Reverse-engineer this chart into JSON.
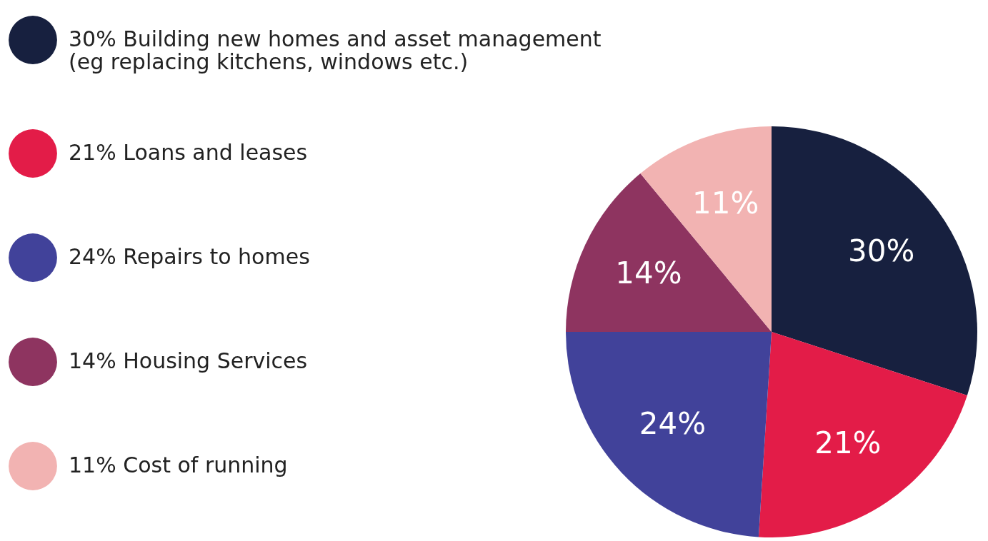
{
  "chart_data": {
    "type": "pie",
    "categories": [
      "30% Building new homes and asset management\n(eg replacing kitchens, windows etc.)",
      "21% Loans and leases",
      "24% Repairs to homes",
      "14% Housing Services",
      "11% Cost of running"
    ],
    "values": [
      30,
      21,
      24,
      14,
      11
    ],
    "value_labels": [
      "30%",
      "21%",
      "24%",
      "14%",
      "11%"
    ],
    "colors": [
      "#17203f",
      "#e31c48",
      "#41429a",
      "#8e3460",
      "#f2b3b2"
    ],
    "legend": "left"
  }
}
